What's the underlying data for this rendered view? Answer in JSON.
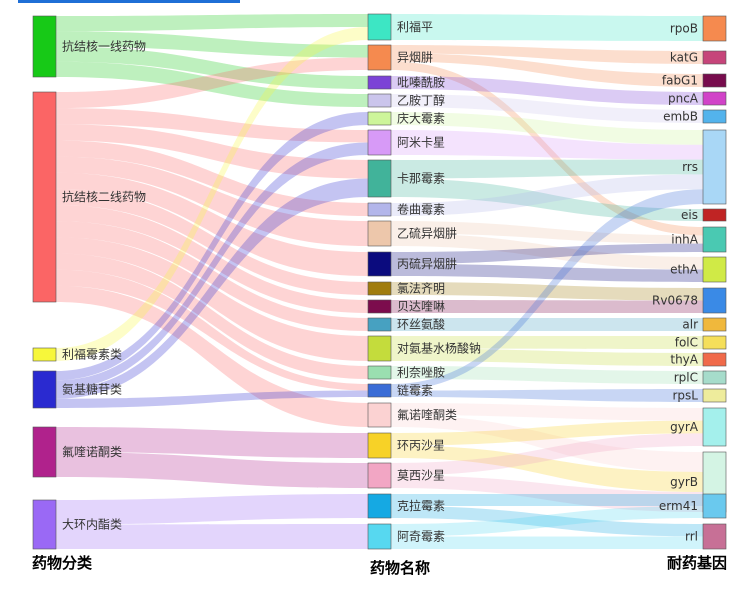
{
  "column_titles": {
    "category": "药物分类",
    "drug": "药物名称",
    "gene": "耐药基因"
  },
  "colors": {
    "categories": {
      "抗结核一线药物": "#17c917",
      "抗结核二线药物": "#fb6565",
      "利福霉素类": "#f7f73a",
      "氨基糖苷类": "#2a2ad0",
      "氟喹诺酮类": "#b0228c",
      "大环内酯类": "#9a69f5"
    },
    "drugs": {
      "利福平": "#3de6c4",
      "异烟肼": "#f58a4f",
      "吡嗪酰胺": "#7c43d6",
      "乙胺丁醇": "#cbc5ec",
      "庆大霉素": "#cdf59a",
      "阿米卡星": "#d79af7",
      "卡那霉素": "#41b39a",
      "卷曲霉素": "#b3b6ea",
      "乙硫异烟肼": "#edc7ab",
      "丙硫异烟肼": "#0b0b7e",
      "氯法齐明": "#a07c0e",
      "贝达喹啉": "#7c0c4d",
      "环丝氨酸": "#47a1c1",
      "对氨基水杨酸钠": "#c4dc3c",
      "利奈唑胺": "#9adfb0",
      "链霉素": "#3a6cd6",
      "氟诺喹酮类": "#fbd2d2",
      "环丙沙星": "#f7d227",
      "莫西沙星": "#f2a6c4",
      "克拉霉素": "#15a9e3",
      "阿奇霉素": "#57d8f0"
    },
    "genes": {
      "rpoB": "#f58a4f",
      "katG": "#c6457a",
      "fabG1": "#770c4d",
      "pncA": "#d143c8",
      "embB": "#53b3ec",
      "rrs": "#a9d7f6",
      "eis": "#c02424",
      "inhA": "#4ac9b2",
      "ethA": "#d0ea46",
      "Rv0678": "#3a8ae6",
      "alr": "#f0b83c",
      "folC": "#f5df5a",
      "thyA": "#f06a4a",
      "rplC": "#a6dccb",
      "rpsL": "#eeec9c",
      "gyrA": "#a4f0ec",
      "gyrB": "#d4f4e4",
      "erm41": "#6ac9ee",
      "rrl": "#c77096"
    }
  },
  "categories": [
    "抗结核一线药物",
    "抗结核二线药物",
    "利福霉素类",
    "氨基糖苷类",
    "氟喹诺酮类",
    "大环内酯类"
  ],
  "drugs": [
    "利福平",
    "异烟肼",
    "吡嗪酰胺",
    "乙胺丁醇",
    "庆大霉素",
    "阿米卡星",
    "卡那霉素",
    "卷曲霉素",
    "乙硫异烟肼",
    "丙硫异烟肼",
    "氯法齐明",
    "贝达喹啉",
    "环丝氨酸",
    "对氨基水杨酸钠",
    "利奈唑胺",
    "链霉素",
    "氟诺喹酮类",
    "环丙沙星",
    "莫西沙星",
    "克拉霉素",
    "阿奇霉素"
  ],
  "genes": [
    "rpoB",
    "katG",
    "fabG1",
    "pncA",
    "embB",
    "rrs",
    "eis",
    "inhA",
    "ethA",
    "Rv0678",
    "alr",
    "folC",
    "thyA",
    "rplC",
    "rpsL",
    "gyrA",
    "gyrB",
    "erm41",
    "rrl"
  ],
  "links_category_drug": [
    [
      "抗结核一线药物",
      "利福平"
    ],
    [
      "抗结核一线药物",
      "异烟肼"
    ],
    [
      "抗结核一线药物",
      "吡嗪酰胺"
    ],
    [
      "抗结核一线药物",
      "乙胺丁醇"
    ],
    [
      "抗结核二线药物",
      "异烟肼"
    ],
    [
      "抗结核二线药物",
      "阿米卡星"
    ],
    [
      "抗结核二线药物",
      "卡那霉素"
    ],
    [
      "抗结核二线药物",
      "卷曲霉素"
    ],
    [
      "抗结核二线药物",
      "乙硫异烟肼"
    ],
    [
      "抗结核二线药物",
      "丙硫异烟肼"
    ],
    [
      "抗结核二线药物",
      "氯法齐明"
    ],
    [
      "抗结核二线药物",
      "贝达喹啉"
    ],
    [
      "抗结核二线药物",
      "环丝氨酸"
    ],
    [
      "抗结核二线药物",
      "对氨基水杨酸钠"
    ],
    [
      "抗结核二线药物",
      "利奈唑胺"
    ],
    [
      "抗结核二线药物",
      "链霉素"
    ],
    [
      "抗结核二线药物",
      "氟诺喹酮类"
    ],
    [
      "利福霉素类",
      "利福平"
    ],
    [
      "氨基糖苷类",
      "庆大霉素"
    ],
    [
      "氨基糖苷类",
      "阿米卡星"
    ],
    [
      "氨基糖苷类",
      "卡那霉素"
    ],
    [
      "氨基糖苷类",
      "链霉素"
    ],
    [
      "氟喹诺酮类",
      "环丙沙星"
    ],
    [
      "氟喹诺酮类",
      "莫西沙星"
    ],
    [
      "大环内酯类",
      "克拉霉素"
    ],
    [
      "大环内酯类",
      "阿奇霉素"
    ]
  ],
  "links_drug_gene": [
    [
      "利福平",
      "rpoB"
    ],
    [
      "异烟肼",
      "katG"
    ],
    [
      "异烟肼",
      "fabG1"
    ],
    [
      "异烟肼",
      "inhA"
    ],
    [
      "吡嗪酰胺",
      "pncA"
    ],
    [
      "乙胺丁醇",
      "embB"
    ],
    [
      "庆大霉素",
      "rrs"
    ],
    [
      "阿米卡星",
      "rrs"
    ],
    [
      "卡那霉素",
      "rrs"
    ],
    [
      "卡那霉素",
      "eis"
    ],
    [
      "卷曲霉素",
      "rrs"
    ],
    [
      "乙硫异烟肼",
      "inhA"
    ],
    [
      "乙硫异烟肼",
      "ethA"
    ],
    [
      "丙硫异烟肼",
      "inhA"
    ],
    [
      "丙硫异烟肼",
      "ethA"
    ],
    [
      "氯法齐明",
      "Rv0678"
    ],
    [
      "贝达喹啉",
      "Rv0678"
    ],
    [
      "环丝氨酸",
      "alr"
    ],
    [
      "对氨基水杨酸钠",
      "folC"
    ],
    [
      "对氨基水杨酸钠",
      "thyA"
    ],
    [
      "利奈唑胺",
      "rplC"
    ],
    [
      "链霉素",
      "rpsL"
    ],
    [
      "链霉素",
      "rrs"
    ],
    [
      "氟诺喹酮类",
      "gyrA"
    ],
    [
      "氟诺喹酮类",
      "gyrB"
    ],
    [
      "环丙沙星",
      "gyrA"
    ],
    [
      "环丙沙星",
      "gyrB"
    ],
    [
      "莫西沙星",
      "gyrA"
    ],
    [
      "莫西沙星",
      "gyrB"
    ],
    [
      "克拉霉素",
      "erm41"
    ],
    [
      "克拉霉素",
      "rrl"
    ],
    [
      "阿奇霉素",
      "erm41"
    ],
    [
      "阿奇霉素",
      "rrl"
    ]
  ]
}
